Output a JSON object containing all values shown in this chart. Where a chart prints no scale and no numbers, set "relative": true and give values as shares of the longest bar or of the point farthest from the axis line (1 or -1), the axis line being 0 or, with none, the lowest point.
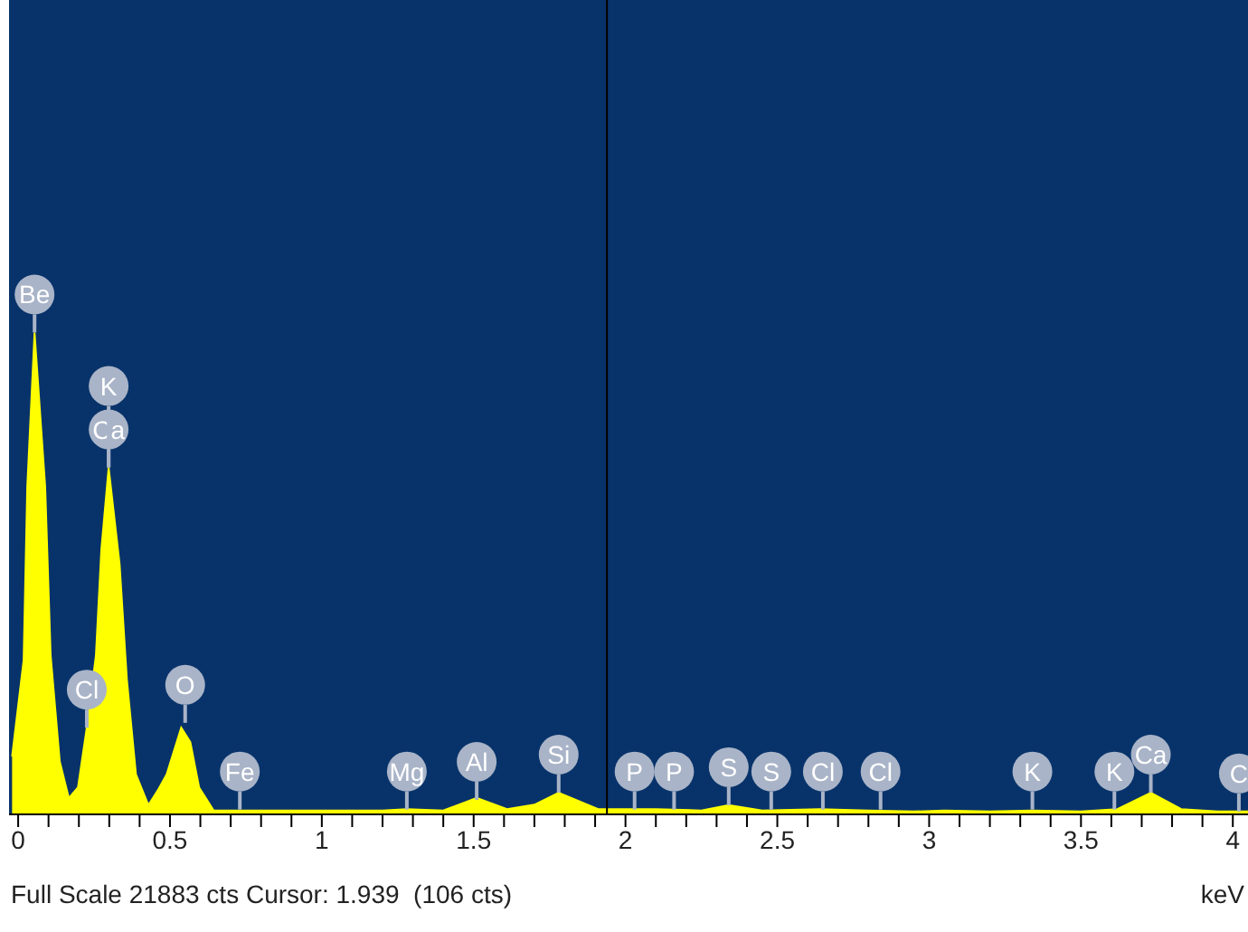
{
  "chart_data": {
    "type": "area",
    "relative": true,
    "color": "#ffff00",
    "xlabel": "keV",
    "x": [
      -0.02,
      0.018,
      0.03,
      0.054,
      0.089,
      0.107,
      0.137,
      0.167,
      0.197,
      0.226,
      0.256,
      0.274,
      0.298,
      0.334,
      0.358,
      0.388,
      0.429,
      0.46,
      0.489,
      0.537,
      0.567,
      0.596,
      0.644,
      0.8,
      1.0,
      1.2,
      1.28,
      1.4,
      1.51,
      1.61,
      1.7,
      1.78,
      1.91,
      2.1,
      2.25,
      2.34,
      2.45,
      2.64,
      2.8,
      2.95,
      3.05,
      3.2,
      3.34,
      3.5,
      3.62,
      3.73,
      3.83,
      3.95,
      4.05
    ],
    "values": [
      0.12,
      0.32,
      0.68,
      1,
      0.68,
      0.33,
      0.11,
      0.034,
      0.056,
      0.18,
      0.33,
      0.55,
      0.72,
      0.52,
      0.28,
      0.083,
      0.019,
      0.05,
      0.083,
      0.18,
      0.15,
      0.056,
      0.008,
      0.008,
      0.008,
      0.008,
      0.011,
      0.008,
      0.034,
      0.011,
      0.02,
      0.045,
      0.011,
      0.011,
      0.008,
      0.019,
      0.008,
      0.011,
      0.008,
      0.006,
      0.008,
      0.006,
      0.008,
      0.006,
      0.011,
      0.045,
      0.011,
      0.006,
      0.006
    ],
    "xlim": [
      -0.03,
      4.05
    ],
    "xticks": [
      0,
      {
        "value": 0.1,
        "label": null
      },
      {
        "value": 0.2,
        "label": null
      },
      {
        "value": 0.3,
        "label": null
      },
      {
        "value": 0.4,
        "label": null
      },
      0.5,
      {
        "value": 0.6,
        "label": null
      },
      {
        "value": 0.7,
        "label": null
      },
      {
        "value": 0.8,
        "label": null
      },
      {
        "value": 0.9,
        "label": null
      },
      1,
      {
        "value": 1.1,
        "label": null
      },
      {
        "value": 1.2,
        "label": null
      },
      {
        "value": 1.3,
        "label": null
      },
      {
        "value": 1.4,
        "label": null
      },
      1.5,
      {
        "value": 1.6,
        "label": null
      },
      {
        "value": 1.7,
        "label": null
      },
      {
        "value": 1.8,
        "label": null
      },
      {
        "value": 1.9,
        "label": null
      },
      2,
      {
        "value": 2.1,
        "label": null
      },
      {
        "value": 2.2,
        "label": null
      },
      {
        "value": 2.3,
        "label": null
      },
      {
        "value": 2.4,
        "label": null
      },
      2.5,
      {
        "value": 2.6,
        "label": null
      },
      {
        "value": 2.7,
        "label": null
      },
      {
        "value": 2.8,
        "label": null
      },
      {
        "value": 2.9,
        "label": null
      },
      3,
      {
        "value": 3.1,
        "label": null
      },
      {
        "value": 3.2,
        "label": null
      },
      {
        "value": 3.3,
        "label": null
      },
      {
        "value": 3.4,
        "label": null
      },
      3.5,
      {
        "value": 3.6,
        "label": null
      },
      {
        "value": 3.7,
        "label": null
      },
      {
        "value": 3.8,
        "label": null
      },
      {
        "value": 3.9,
        "label": null
      },
      4
    ],
    "ref_lines": [
      {
        "axis": "x",
        "value": 1.939,
        "color": "#000000"
      }
    ],
    "annotations": [
      {
        "text": "Be",
        "x": 0.054,
        "y": 1
      },
      {
        "text": "Ca",
        "x": 0.298,
        "y": 0.72
      },
      {
        "text": "K",
        "x": 0.298,
        "y": 0.72
      },
      {
        "text": "Cl",
        "x": 0.226,
        "y": 0.18
      },
      {
        "text": "O",
        "x": 0.55,
        "y": 0.19
      },
      {
        "text": "Fe",
        "x": 0.73,
        "y": 0.01
      },
      {
        "text": "Mg",
        "x": 1.28,
        "y": 0.01
      },
      {
        "text": "Al",
        "x": 1.51,
        "y": 0.03
      },
      {
        "text": "Si",
        "x": 1.78,
        "y": 0.045
      },
      {
        "text": "P",
        "x": 2.03,
        "y": 0.01
      },
      {
        "text": "P",
        "x": 2.16,
        "y": 0.01
      },
      {
        "text": "S",
        "x": 2.34,
        "y": 0.019
      },
      {
        "text": "S",
        "x": 2.48,
        "y": 0.01
      },
      {
        "text": "Cl",
        "x": 2.65,
        "y": 0.01
      },
      {
        "text": "Cl",
        "x": 2.84,
        "y": 0.01
      },
      {
        "text": "K",
        "x": 3.34,
        "y": 0.01
      },
      {
        "text": "K",
        "x": 3.61,
        "y": 0.01
      },
      {
        "text": "Ca",
        "x": 3.73,
        "y": 0.045
      },
      {
        "text": "C",
        "x": 4.02,
        "y": 0.006
      },
      "Full Scale 21883 cts Cursor: 1.939  (106 cts)"
    ]
  }
}
